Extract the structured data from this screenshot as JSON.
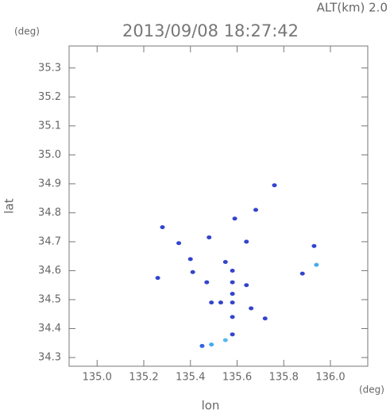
{
  "chart_data": {
    "type": "scatter",
    "title": "2013/09/08 18:27:42",
    "subtitle": "ALT(km) 2.0",
    "x_label": "lon",
    "y_label": "lat",
    "x_unit": "(deg)",
    "y_unit": "(deg)",
    "xlim": [
      134.88,
      136.16
    ],
    "ylim": [
      34.27,
      35.376
    ],
    "xticks": [
      {
        "value": 135.0,
        "label": "135.0"
      },
      135.2,
      135.4,
      135.6,
      135.8,
      {
        "value": 136.0,
        "label": "136.0"
      }
    ],
    "yticks": [
      34.3,
      34.4,
      34.5,
      34.6,
      34.7,
      34.8,
      34.9,
      {
        "value": 35.0,
        "label": "35.0"
      },
      35.1,
      35.2,
      35.3
    ],
    "x": [
      135.76,
      135.59,
      135.68,
      135.28,
      135.26,
      135.35,
      135.48,
      135.64,
      135.4,
      135.41,
      135.47,
      135.55,
      135.58,
      135.58,
      135.53,
      135.58,
      135.58,
      135.64,
      135.66,
      135.58,
      135.49,
      135.58,
      135.72,
      135.88,
      135.93,
      135.94,
      135.55,
      135.49,
      135.45
    ],
    "y": [
      34.895,
      34.78,
      34.81,
      34.75,
      34.575,
      34.695,
      34.715,
      34.7,
      34.64,
      34.595,
      34.56,
      34.63,
      34.6,
      34.56,
      34.49,
      34.52,
      34.49,
      34.55,
      34.47,
      34.44,
      34.49,
      34.38,
      34.435,
      34.59,
      34.685,
      34.62,
      34.36,
      34.345,
      34.34
    ],
    "point_colors": [
      "#3344cc",
      "#3344cc",
      "#3344cc",
      "#3344cc",
      "#3344cc",
      "#3344cc",
      "#3344cc",
      "#3344cc",
      "#3344cc",
      "#3344cc",
      "#3344cc",
      "#3344cc",
      "#3344cc",
      "#3344cc",
      "#3344cc",
      "#3344cc",
      "#3344cc",
      "#3344cc",
      "#3344cc",
      "#3344cc",
      "#3344cc",
      "#3344cc",
      "#3344cc",
      "#3344cc",
      "#3344cc",
      "#44aaee",
      "#55bbee",
      "#44aaee",
      "#3366dd"
    ]
  }
}
